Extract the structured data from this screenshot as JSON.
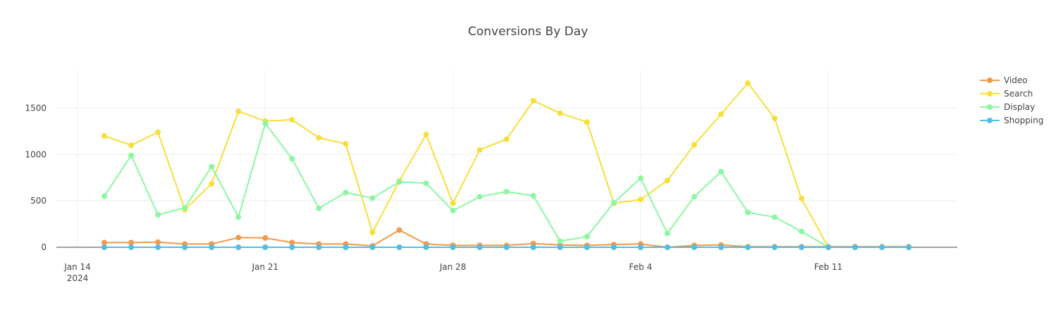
{
  "chart_data": {
    "type": "line",
    "title": "Conversions By Day",
    "xlabel": "",
    "ylabel": "",
    "x_start": "2024-01-15",
    "x_tick_labels": [
      {
        "date": "2024-01-14",
        "label": "Jan 14",
        "sublabel": "2024"
      },
      {
        "date": "2024-01-21",
        "label": "Jan 21",
        "sublabel": ""
      },
      {
        "date": "2024-01-28",
        "label": "Jan 28",
        "sublabel": ""
      },
      {
        "date": "2024-02-04",
        "label": "Feb 4",
        "sublabel": ""
      },
      {
        "date": "2024-02-11",
        "label": "Feb 11",
        "sublabel": ""
      }
    ],
    "xlim": [
      "2024-01-14",
      "2024-02-17"
    ],
    "ylim": [
      -60,
      1900
    ],
    "y_ticks": [
      0,
      500,
      1000,
      1500
    ],
    "grid": true,
    "legend_placement": "top-right",
    "series": [
      {
        "name": "Video",
        "color": "#f2994a",
        "values": [
          50,
          50,
          55,
          35,
          35,
          105,
          100,
          50,
          35,
          35,
          15,
          185,
          35,
          20,
          20,
          20,
          40,
          25,
          20,
          30,
          35,
          0,
          20,
          25,
          5,
          5,
          5,
          5,
          5,
          5,
          5
        ]
      },
      {
        "name": "Search",
        "color": "#f7df3b",
        "values": [
          1200,
          1100,
          1240,
          405,
          685,
          1465,
          1360,
          1375,
          1180,
          1115,
          160,
          715,
          1215,
          475,
          1050,
          1165,
          1580,
          1445,
          1350,
          475,
          515,
          720,
          1105,
          1435,
          1770,
          1390,
          525,
          0,
          0,
          0,
          0
        ]
      },
      {
        "name": "Display",
        "color": "#8cf7a3",
        "values": [
          550,
          990,
          350,
          425,
          870,
          325,
          1335,
          955,
          420,
          590,
          530,
          705,
          690,
          395,
          545,
          600,
          555,
          65,
          115,
          480,
          745,
          150,
          545,
          815,
          375,
          325,
          170,
          0,
          0,
          0,
          0
        ]
      },
      {
        "name": "Shopping",
        "color": "#52bde6",
        "values": [
          0,
          0,
          0,
          0,
          0,
          0,
          0,
          0,
          0,
          0,
          0,
          0,
          0,
          0,
          0,
          0,
          0,
          0,
          0,
          0,
          0,
          0,
          0,
          0,
          0,
          0,
          0,
          0,
          0,
          0,
          0
        ]
      }
    ]
  }
}
